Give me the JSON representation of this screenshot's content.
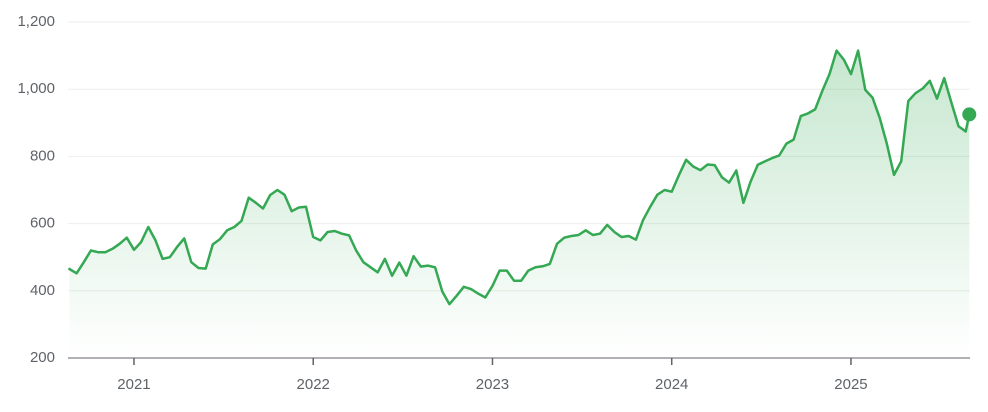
{
  "chart_data": {
    "type": "line",
    "color": "#34a853",
    "grid": true,
    "fill_area": true,
    "end_marker": true,
    "xlim": [
      2020.632,
      2025.664
    ],
    "xticks": [
      2021,
      2022,
      2023,
      2024,
      2025
    ],
    "ylim": [
      200,
      1200
    ],
    "yticks": [
      200,
      400,
      600,
      800,
      {
        "value": 1000,
        "label": "1,000"
      },
      {
        "value": 1200,
        "label": "1,200"
      }
    ],
    "x": [
      2020.64,
      2020.68,
      2020.72,
      2020.76,
      2020.8,
      2020.84,
      2020.88,
      2020.92,
      2020.96,
      2021,
      2021.04,
      2021.08,
      2021.12,
      2021.16,
      2021.2,
      2021.24,
      2021.28,
      2021.32,
      2021.36,
      2021.4,
      2021.44,
      2021.48,
      2021.52,
      2021.56,
      2021.6,
      2021.64,
      2021.68,
      2021.72,
      2021.76,
      2021.8,
      2021.84,
      2021.88,
      2021.92,
      2021.96,
      2022,
      2022.04,
      2022.08,
      2022.12,
      2022.16,
      2022.2,
      2022.24,
      2022.28,
      2022.32,
      2022.36,
      2022.4,
      2022.44,
      2022.48,
      2022.52,
      2022.56,
      2022.6,
      2022.64,
      2022.68,
      2022.72,
      2022.76,
      2022.8,
      2022.84,
      2022.88,
      2022.92,
      2022.96,
      2023,
      2023.04,
      2023.08,
      2023.12,
      2023.16,
      2023.2,
      2023.24,
      2023.28,
      2023.32,
      2023.36,
      2023.4,
      2023.44,
      2023.48,
      2023.52,
      2023.56,
      2023.6,
      2023.64,
      2023.68,
      2023.72,
      2023.76,
      2023.8,
      2023.84,
      2023.88,
      2023.92,
      2023.96,
      2024,
      2024.04,
      2024.08,
      2024.12,
      2024.16,
      2024.2,
      2024.24,
      2024.28,
      2024.32,
      2024.36,
      2024.4,
      2024.44,
      2024.48,
      2024.52,
      2024.56,
      2024.6,
      2024.64,
      2024.68,
      2024.72,
      2024.76,
      2024.8,
      2024.84,
      2024.88,
      2024.92,
      2024.96,
      2025,
      2025.04,
      2025.08,
      2025.12,
      2025.16,
      2025.2,
      2025.24,
      2025.28,
      2025.32,
      2025.36,
      2025.4,
      2025.44,
      2025.48,
      2025.52,
      2025.56,
      2025.6,
      2025.64,
      2025.66
    ],
    "values": [
      465,
      452,
      485,
      520,
      515,
      515,
      525,
      540,
      558,
      522,
      545,
      590,
      550,
      495,
      500,
      530,
      556,
      485,
      468,
      466,
      538,
      554,
      580,
      590,
      608,
      677,
      662,
      645,
      685,
      700,
      686,
      637,
      648,
      650,
      560,
      550,
      575,
      578,
      570,
      565,
      520,
      485,
      470,
      455,
      495,
      445,
      484,
      445,
      503,
      472,
      475,
      470,
      398,
      360,
      385,
      412,
      405,
      392,
      380,
      415,
      460,
      460,
      430,
      430,
      460,
      470,
      473,
      480,
      540,
      558,
      563,
      566,
      580,
      566,
      570,
      596,
      575,
      560,
      563,
      552,
      610,
      650,
      686,
      700,
      695,
      744,
      790,
      770,
      759,
      776,
      774,
      738,
      722,
      758,
      662,
      725,
      775,
      785,
      795,
      803,
      838,
      850,
      920,
      928,
      940,
      995,
      1045,
      1115,
      1088,
      1045,
      1115,
      998,
      975,
      915,
      838,
      745,
      785,
      965,
      988,
      1002,
      1025,
      972,
      1033,
      960,
      890,
      874,
      925
    ]
  }
}
